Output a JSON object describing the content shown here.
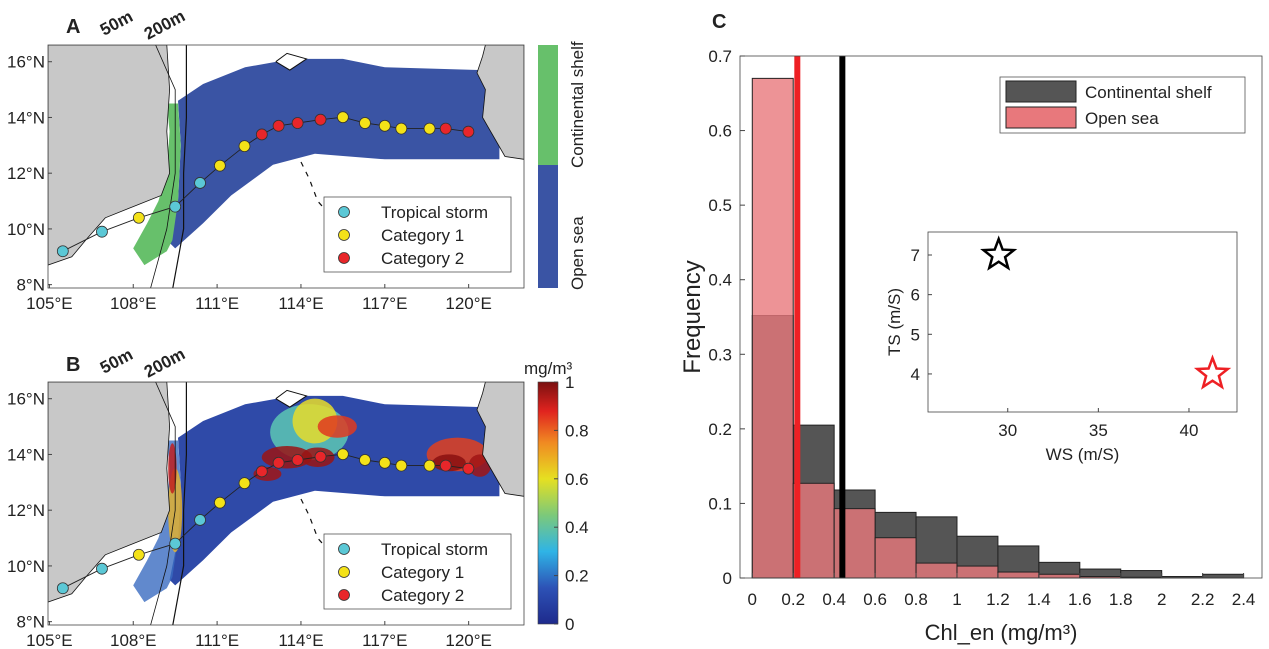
{
  "panels": {
    "a_label": "A",
    "b_label": "B",
    "c_label": "C",
    "isobath_50": "50m",
    "isobath_200": "200m"
  },
  "map": {
    "lon_ticks": [
      "105°E",
      "108°E",
      "111°E",
      "114°E",
      "117°E",
      "120°E"
    ],
    "lon_values": [
      105,
      108,
      111,
      114,
      117,
      120
    ],
    "lat_ticks": [
      "8°N",
      "10°N",
      "12°N",
      "14°N",
      "16°N"
    ],
    "lat_values": [
      8,
      10,
      12,
      14,
      16
    ],
    "lon_range": [
      104.95,
      121.98
    ],
    "lat_range": [
      7.88,
      16.6
    ],
    "track": [
      {
        "lon": 105.48,
        "lat": 9.2,
        "cat": "ts"
      },
      {
        "lon": 106.88,
        "lat": 9.9,
        "cat": "ts"
      },
      {
        "lon": 108.2,
        "lat": 10.4,
        "cat": "c1"
      },
      {
        "lon": 109.5,
        "lat": 10.8,
        "cat": "ts"
      },
      {
        "lon": 110.39,
        "lat": 11.65,
        "cat": "ts"
      },
      {
        "lon": 111.1,
        "lat": 12.27,
        "cat": "c1"
      },
      {
        "lon": 111.98,
        "lat": 12.97,
        "cat": "c1"
      },
      {
        "lon": 112.6,
        "lat": 13.39,
        "cat": "c2"
      },
      {
        "lon": 113.2,
        "lat": 13.7,
        "cat": "c2"
      },
      {
        "lon": 113.88,
        "lat": 13.8,
        "cat": "c2"
      },
      {
        "lon": 114.7,
        "lat": 13.92,
        "cat": "c2"
      },
      {
        "lon": 115.5,
        "lat": 14.01,
        "cat": "c1"
      },
      {
        "lon": 116.29,
        "lat": 13.8,
        "cat": "c1"
      },
      {
        "lon": 117.0,
        "lat": 13.7,
        "cat": "c1"
      },
      {
        "lon": 117.59,
        "lat": 13.6,
        "cat": "c1"
      },
      {
        "lon": 118.6,
        "lat": 13.6,
        "cat": "c1"
      },
      {
        "lon": 119.18,
        "lat": 13.6,
        "cat": "c2"
      },
      {
        "lon": 119.99,
        "lat": 13.49,
        "cat": "c2"
      }
    ],
    "legend": [
      {
        "key": "ts",
        "label": "Tropical storm",
        "color": "#5bc8d6"
      },
      {
        "key": "c1",
        "label": "Category 1",
        "color": "#f4e218"
      },
      {
        "key": "c2",
        "label": "Category 2",
        "color": "#e8262a"
      }
    ],
    "colors": {
      "land": "#c8c8c8",
      "open_sea": "#3a54a4",
      "shelf": "#67c06b"
    },
    "region_colorbar": {
      "top_label": "Continental shelf",
      "bottom_label": "Open sea"
    },
    "chl_colorbar": {
      "unit": "mg/m³",
      "ticks": [
        "0",
        "0.2",
        "0.4",
        "0.6",
        "0.8",
        "1"
      ],
      "range": [
        0,
        1
      ]
    }
  },
  "chart_data": {
    "type": "bar",
    "title": "",
    "xlabel": "Chl_en (mg/m³)",
    "ylabel": "Frequency",
    "xlim": [
      -0.06,
      2.49
    ],
    "ylim": [
      0,
      0.7
    ],
    "xticks": [
      "0",
      "0.2",
      "0.4",
      "0.6",
      "0.8",
      "1",
      "1.2",
      "1.4",
      "1.6",
      "1.8",
      "2",
      "2.2",
      "2.4"
    ],
    "xtick_values": [
      0,
      0.2,
      0.4,
      0.6,
      0.8,
      1,
      1.2,
      1.4,
      1.6,
      1.8,
      2,
      2.2,
      2.4
    ],
    "yticks": [
      "0",
      "0.1",
      "0.2",
      "0.3",
      "0.4",
      "0.5",
      "0.6",
      "0.7"
    ],
    "ytick_values": [
      0,
      0.1,
      0.2,
      0.3,
      0.4,
      0.5,
      0.6,
      0.7
    ],
    "bin_edges": [
      0,
      0.2,
      0.4,
      0.6,
      0.8,
      1,
      1.2,
      1.4,
      1.6,
      1.8,
      2,
      2.2,
      2.4
    ],
    "series": [
      {
        "name": "Continental shelf",
        "color": "#555555",
        "values": [
          0.352,
          0.205,
          0.118,
          0.088,
          0.082,
          0.056,
          0.043,
          0.021,
          0.012,
          0.01,
          0.002,
          0.005
        ],
        "median_line": 0.44,
        "line_color": "#000000"
      },
      {
        "name": "Open sea",
        "color": "#e8787c",
        "values": [
          0.67,
          0.127,
          0.093,
          0.054,
          0.02,
          0.016,
          0.008,
          0.005,
          0.002,
          0.001,
          0,
          0
        ],
        "median_line": 0.22,
        "line_color": "#ee2024"
      }
    ],
    "legend_position": "top-right",
    "inset": {
      "type": "scatter",
      "xlabel": "WS (m/S)",
      "ylabel": "TS (m/S)",
      "xlim": [
        25.6,
        42.65
      ],
      "ylim": [
        3.04,
        7.58
      ],
      "xticks": [
        "30",
        "35",
        "40"
      ],
      "xtick_values": [
        30,
        35,
        40
      ],
      "yticks": [
        "4",
        "5",
        "6",
        "7"
      ],
      "ytick_values": [
        4,
        5,
        6,
        7
      ],
      "points": [
        {
          "x": 29.5,
          "y": 7.0,
          "color": "#000000",
          "marker": "star"
        },
        {
          "x": 41.3,
          "y": 4.0,
          "color": "#ee2024",
          "marker": "star"
        }
      ]
    }
  }
}
